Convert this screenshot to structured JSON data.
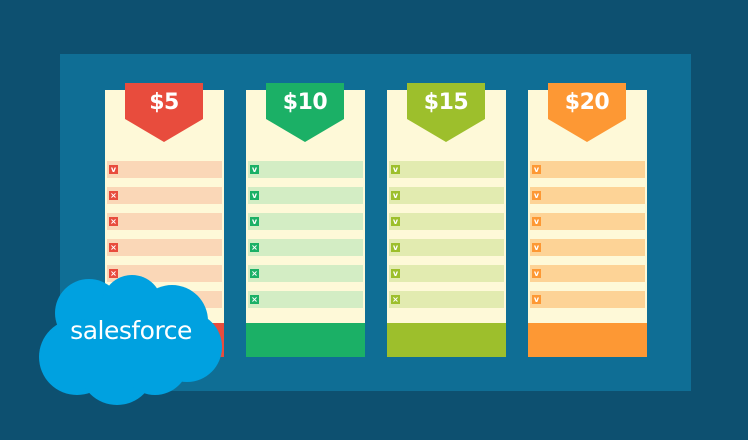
{
  "plans": [
    {
      "price": "$5",
      "accent": "#e84c3d",
      "row_bg": "#fad7b7",
      "features": [
        "check",
        "cross",
        "cross",
        "cross",
        "cross",
        "cross"
      ]
    },
    {
      "price": "$10",
      "accent": "#1bb066",
      "row_bg": "#d3edc4",
      "features": [
        "check",
        "check",
        "check",
        "cross",
        "cross",
        "cross"
      ]
    },
    {
      "price": "$15",
      "accent": "#9dbf2c",
      "row_bg": "#e2ebb0",
      "features": [
        "check",
        "check",
        "check",
        "check",
        "check",
        "cross"
      ]
    },
    {
      "price": "$20",
      "accent": "#fd9834",
      "row_bg": "#fdd396",
      "features": [
        "check",
        "check",
        "check",
        "check",
        "check",
        "check"
      ]
    }
  ],
  "logo": {
    "text": "salesforce",
    "color": "#00a1e0"
  }
}
